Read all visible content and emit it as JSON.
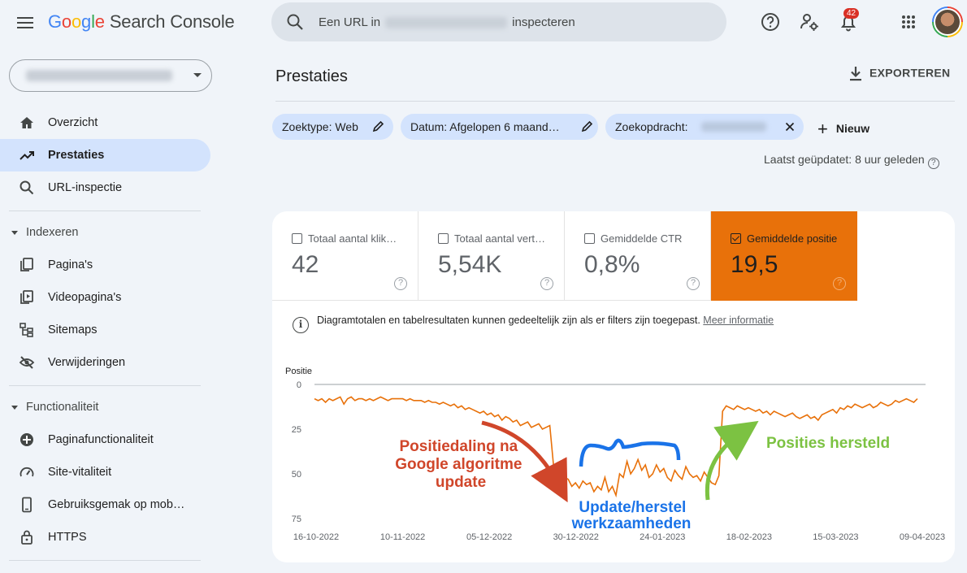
{
  "app": {
    "logo_g": [
      "G",
      "o",
      "o",
      "g",
      "l",
      "e"
    ],
    "logo_product": "Search Console"
  },
  "search": {
    "prefix": "Een URL in",
    "suffix": "inspecteren"
  },
  "topbar": {
    "notification_count": "42",
    "icons": [
      "help-icon",
      "manage-accounts-icon",
      "notifications-icon",
      "apps-grid-icon"
    ]
  },
  "sidebar": {
    "items": [
      {
        "label": "Overzicht",
        "icon": "home-icon"
      },
      {
        "label": "Prestaties",
        "icon": "trending-up-icon",
        "active": true
      },
      {
        "label": "URL-inspectie",
        "icon": "search-icon"
      }
    ],
    "section_indexeren": "Indexeren",
    "indexeren_items": [
      {
        "label": "Pagina's",
        "icon": "pages-icon"
      },
      {
        "label": "Videopagina's",
        "icon": "video-pages-icon"
      },
      {
        "label": "Sitemaps",
        "icon": "sitemap-icon"
      },
      {
        "label": "Verwijderingen",
        "icon": "removals-icon"
      }
    ],
    "section_functionaliteit": "Functionaliteit",
    "functionaliteit_items": [
      {
        "label": "Paginafunctionaliteit",
        "icon": "page-experience-icon"
      },
      {
        "label": "Site-vitaliteit",
        "icon": "gauge-icon"
      },
      {
        "label": "Gebruiksgemak op mob…",
        "icon": "mobile-icon"
      },
      {
        "label": "HTTPS",
        "icon": "lock-icon"
      }
    ]
  },
  "main": {
    "title": "Prestaties",
    "export_label": "EXPORTEREN",
    "filters": [
      {
        "label": "Zoektype: Web"
      },
      {
        "label": "Datum: Afgelopen 6 maand…"
      },
      {
        "label": "Zoekopdracht:"
      }
    ],
    "new_label": "Nieuw",
    "updated": "Laatst geüpdatet: 8 uur geleden"
  },
  "metrics": [
    {
      "label": "Totaal aantal klik…",
      "value": "42",
      "selected": false
    },
    {
      "label": "Totaal aantal vert…",
      "value": "5,54K",
      "selected": false
    },
    {
      "label": "Gemiddelde CTR",
      "value": "0,8%",
      "selected": false
    },
    {
      "label": "Gemiddelde positie",
      "value": "19,5",
      "selected": true
    }
  ],
  "info": {
    "text": "Diagramtotalen en tabelresultaten kunnen gedeeltelijk zijn als er filters zijn toegepast.",
    "link": "Meer informatie"
  },
  "colors": {
    "accent": "#e8710a",
    "annotation_red": "#d0462a",
    "annotation_blue": "#1a73e8",
    "annotation_green": "#7cc242"
  },
  "chart_data": {
    "type": "line",
    "ylabel": "Positie",
    "ylim": [
      0,
      75
    ],
    "y_inverted": true,
    "yticks": [
      "0",
      "25",
      "50",
      "75"
    ],
    "xtick_labels": [
      "16-10-2022",
      "10-11-2022",
      "05-12-2022",
      "30-12-2022",
      "24-01-2023",
      "18-02-2023",
      "15-03-2023",
      "09-04-2023"
    ],
    "series": [
      {
        "color": "#e8710a",
        "values": [
          8,
          9,
          8,
          10,
          8,
          9,
          8,
          7,
          11,
          8,
          7,
          9,
          8,
          8,
          9,
          8,
          9,
          8,
          7,
          8,
          9,
          8,
          8,
          8,
          8,
          9,
          8,
          9,
          9,
          9,
          10,
          9,
          10,
          10,
          11,
          10,
          11,
          12,
          11,
          13,
          12,
          14,
          13,
          14,
          15,
          16,
          15,
          17,
          16,
          18,
          17,
          20,
          18,
          19,
          21,
          20,
          23,
          22,
          21,
          24,
          23,
          22,
          25,
          24,
          23,
          45,
          55,
          58,
          52,
          53,
          57,
          55,
          58,
          54,
          56,
          55,
          60,
          57,
          59,
          52,
          60,
          57,
          62,
          50,
          52,
          43,
          50,
          47,
          42,
          48,
          45,
          52,
          50,
          45,
          49,
          47,
          52,
          54,
          48,
          51,
          53,
          46,
          50,
          52,
          51,
          54,
          49,
          52,
          55,
          56,
          51,
          15,
          12,
          13,
          14,
          12,
          13,
          14,
          13,
          14,
          15,
          14,
          16,
          15,
          17,
          15,
          16,
          17,
          18,
          17,
          16,
          18,
          19,
          18,
          17,
          19,
          18,
          20,
          17,
          16,
          15,
          14,
          16,
          13,
          14,
          12,
          13,
          11,
          12,
          13,
          12,
          11,
          13,
          12,
          10,
          11,
          12,
          11,
          9,
          10,
          9,
          8,
          9,
          10,
          8
        ]
      }
    ],
    "annotations": [
      {
        "text_lines": [
          "Positiedaling na",
          "Google algoritme",
          "update"
        ],
        "color": "#d0462a"
      },
      {
        "text_lines": [
          "Update/herstel",
          "werkzaamheden"
        ],
        "color": "#1a73e8"
      },
      {
        "text_lines": [
          "Posities hersteld"
        ],
        "color": "#7cc242"
      }
    ]
  }
}
